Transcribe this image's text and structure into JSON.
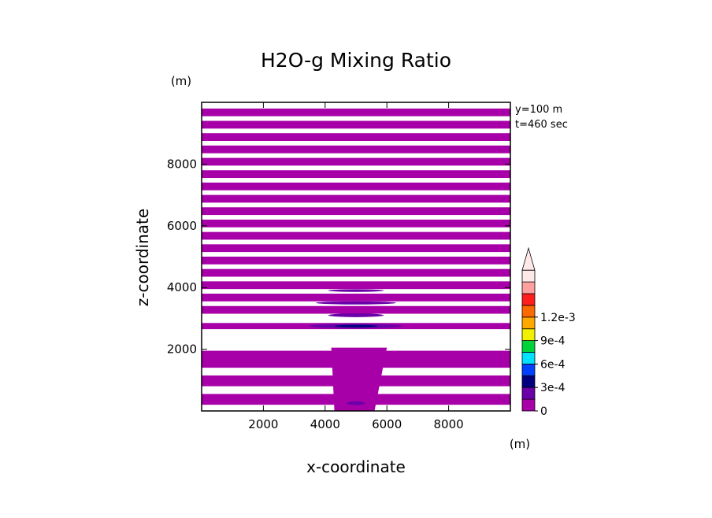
{
  "chart_data": {
    "type": "heatmap",
    "title": "H2O-g Mixing Ratio",
    "xlabel": "x-coordinate",
    "ylabel": "z-coordinate",
    "x_unit": "(m)",
    "y_unit": "(m)",
    "xlim": [
      0,
      10000
    ],
    "ylim": [
      0,
      10000
    ],
    "x_ticks": [
      2000,
      4000,
      6000,
      8000
    ],
    "y_ticks": [
      2000,
      4000,
      6000,
      8000
    ],
    "annotations": [
      "y=100 m",
      "t=460 sec"
    ],
    "colorbar": {
      "tick_values": [
        0,
        0.0003,
        0.0006,
        0.0009,
        0.0012
      ],
      "tick_labels": [
        "0",
        "3e-4",
        "6e-4",
        "9e-4",
        "1.2e-3"
      ],
      "levels": [
        0,
        0.00015,
        0.0003,
        0.00045,
        0.0006,
        0.00075,
        0.0009,
        0.00105,
        0.0012,
        0.00135
      ],
      "colors": [
        "#a800a8",
        "#6a00a8",
        "#00007e",
        "#0040ff",
        "#00e0ff",
        "#00d23c",
        "#f0f000",
        "#ffa800",
        "#ff6a00",
        "#ff1e1e",
        "#ffa0a0",
        "#ffe8e8"
      ],
      "extend": "max"
    },
    "bands": [
      {
        "z0": 9550,
        "z1": 9800,
        "value": 5e-05
      },
      {
        "z0": 9150,
        "z1": 9400,
        "value": 5e-05
      },
      {
        "z0": 8750,
        "z1": 9000,
        "value": 5e-05
      },
      {
        "z0": 8350,
        "z1": 8600,
        "value": 5e-05
      },
      {
        "z0": 7950,
        "z1": 8200,
        "value": 5e-05
      },
      {
        "z0": 7550,
        "z1": 7800,
        "value": 5e-05
      },
      {
        "z0": 7150,
        "z1": 7400,
        "value": 5e-05
      },
      {
        "z0": 6750,
        "z1": 7000,
        "value": 5e-05
      },
      {
        "z0": 6350,
        "z1": 6600,
        "value": 5e-05
      },
      {
        "z0": 5950,
        "z1": 6200,
        "value": 5e-05
      },
      {
        "z0": 5550,
        "z1": 5800,
        "value": 5e-05
      },
      {
        "z0": 5150,
        "z1": 5400,
        "value": 5e-05
      },
      {
        "z0": 4750,
        "z1": 5000,
        "value": 5e-05
      },
      {
        "z0": 4350,
        "z1": 4600,
        "value": 5e-05
      },
      {
        "z0": 3950,
        "z1": 4200,
        "value": 5e-05
      },
      {
        "z0": 3550,
        "z1": 3800,
        "value": 5e-05
      },
      {
        "z0": 3150,
        "z1": 3400,
        "value": 5e-05
      },
      {
        "z0": 2650,
        "z1": 2850,
        "value": 5e-05
      },
      {
        "z0": 1400,
        "z1": 1950,
        "value": 5e-05
      },
      {
        "z0": 800,
        "z1": 1150,
        "value": 5e-05
      },
      {
        "z0": 200,
        "z1": 550,
        "value": 5e-05
      }
    ],
    "blobs": [
      {
        "x": 5000,
        "z": 2750,
        "rx": 1500,
        "rz": 80,
        "value": 0.0002
      },
      {
        "x": 5000,
        "z": 2750,
        "rx": 700,
        "rz": 40,
        "value": 0.00035
      },
      {
        "x": 5000,
        "z": 3100,
        "rx": 900,
        "rz": 60,
        "value": 0.0002
      },
      {
        "x": 5000,
        "z": 3500,
        "rx": 1300,
        "rz": 50,
        "value": 0.0002
      },
      {
        "x": 5000,
        "z": 3900,
        "rx": 900,
        "rz": 40,
        "value": 0.0002
      },
      {
        "x": 5000,
        "z": 250,
        "rx": 300,
        "rz": 60,
        "value": 0.0002
      }
    ],
    "plume": {
      "z_top": 2050,
      "x_left_top": 4200,
      "x_right_top": 6000,
      "x_left_bottom": 4300,
      "x_right_bottom": 5600,
      "value": 5e-05
    }
  }
}
